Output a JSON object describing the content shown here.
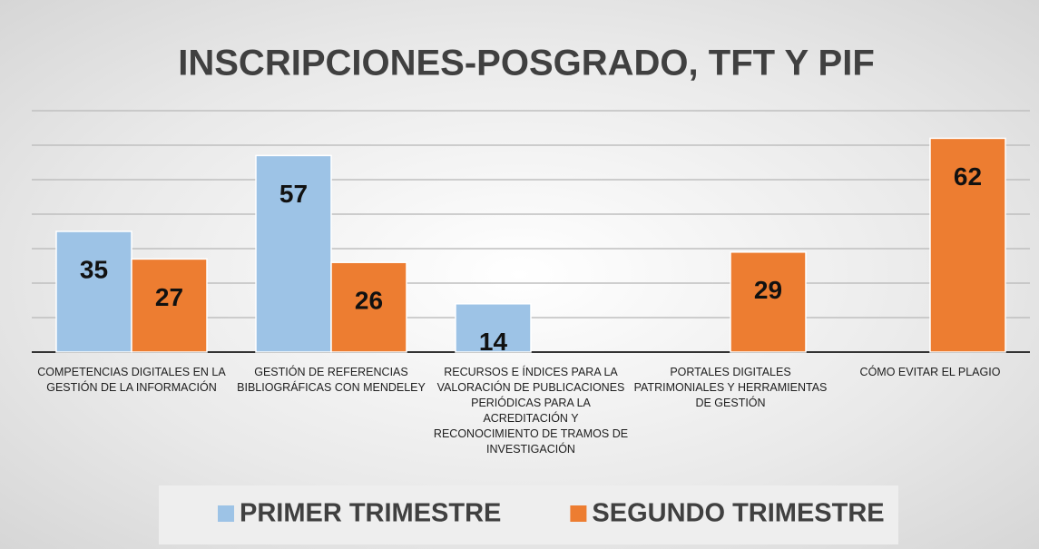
{
  "chart_data": {
    "type": "bar",
    "title": "INSCRIPCIONES-POSGRADO, TFT Y PIF",
    "categories": [
      "COMPETENCIAS DIGITALES EN LA GESTIÓN DE LA INFORMACIÓN",
      "GESTIÓN DE REFERENCIAS BIBLIOGRÁFICAS CON MENDELEY",
      "RECURSOS E ÍNDICES PARA LA VALORACIÓN DE PUBLICACIONES PERIÓDICAS PARA LA ACREDITACIÓN Y RECONOCIMIENTO DE TRAMOS DE INVESTIGACIÓN",
      "PORTALES DIGITALES PATRIMONIALES Y HERRAMIENTAS DE GESTIÓN",
      "CÓMO EVITAR EL PLAGIO"
    ],
    "series": [
      {
        "name": "PRIMER TRIMESTRE",
        "color": "#9dc3e6",
        "values": [
          35,
          57,
          14,
          null,
          null
        ]
      },
      {
        "name": "SEGUNDO TRIMESTRE",
        "color": "#ed7d31",
        "values": [
          27,
          26,
          null,
          29,
          62
        ]
      }
    ],
    "ylim": [
      0,
      70
    ],
    "yticks": [
      0,
      10,
      20,
      30,
      40,
      50,
      60,
      70
    ],
    "grid": true,
    "legend": "bottom"
  }
}
